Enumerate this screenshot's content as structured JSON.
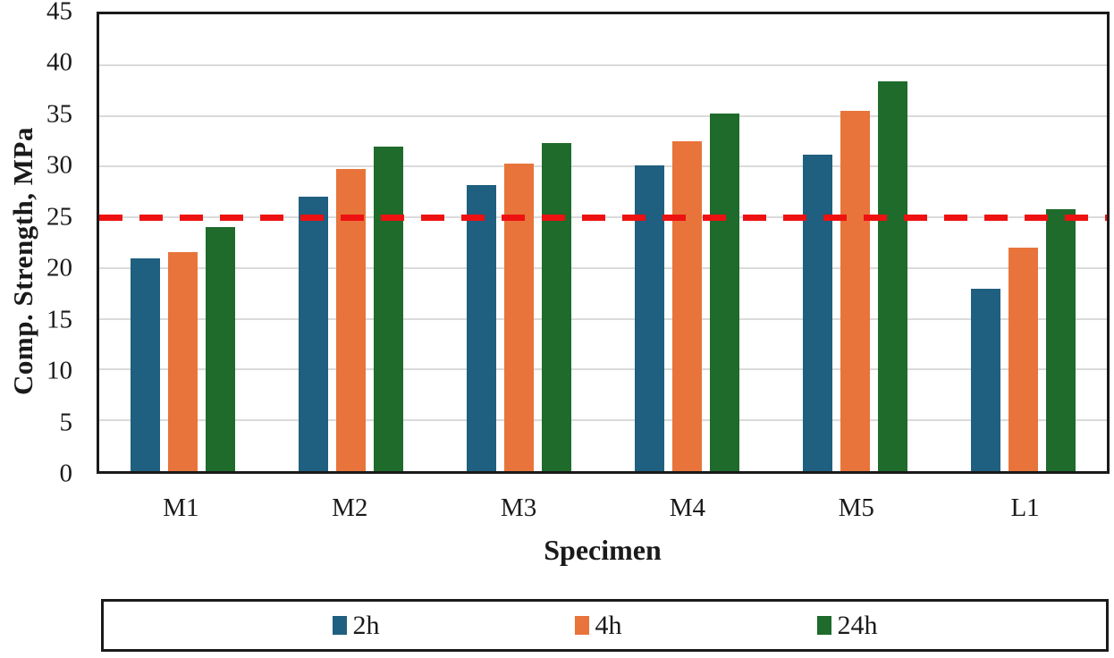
{
  "figure": {
    "description": "Grouped bar chart of compressive strength by specimen with a red dashed threshold line",
    "background": "#ffffff"
  },
  "chart_data": {
    "type": "bar",
    "title": "",
    "xlabel": "Specimen",
    "ylabel": "Comp. Strength, MPa",
    "categories": [
      "M1",
      "M2",
      "M3",
      "M4",
      "M5",
      "L1"
    ],
    "series": [
      {
        "name": "2h",
        "color": "#1f5f7f",
        "values": [
          21.0,
          27.0,
          28.2,
          30.1,
          31.2,
          18.0
        ]
      },
      {
        "name": "4h",
        "color": "#e8743b",
        "values": [
          21.6,
          29.8,
          30.3,
          32.5,
          35.5,
          22.0
        ]
      },
      {
        "name": "24h",
        "color": "#1e6b2b",
        "values": [
          24.0,
          32.0,
          32.3,
          35.2,
          38.4,
          25.8
        ]
      }
    ],
    "ylim": [
      0,
      45
    ],
    "yticks": [
      0,
      5,
      10,
      15,
      20,
      25,
      30,
      35,
      40,
      45
    ],
    "grid": "horizontal",
    "reference_line": {
      "y": 25,
      "color": "#ee1111",
      "style": "dashed"
    },
    "legend": {
      "position": "bottom",
      "boxed": true,
      "entries": [
        "2h",
        "4h",
        "24h"
      ]
    },
    "colors": {
      "grid": "#dadada",
      "axis_border": "#1a1a1a",
      "reference": "#ee1111"
    }
  }
}
